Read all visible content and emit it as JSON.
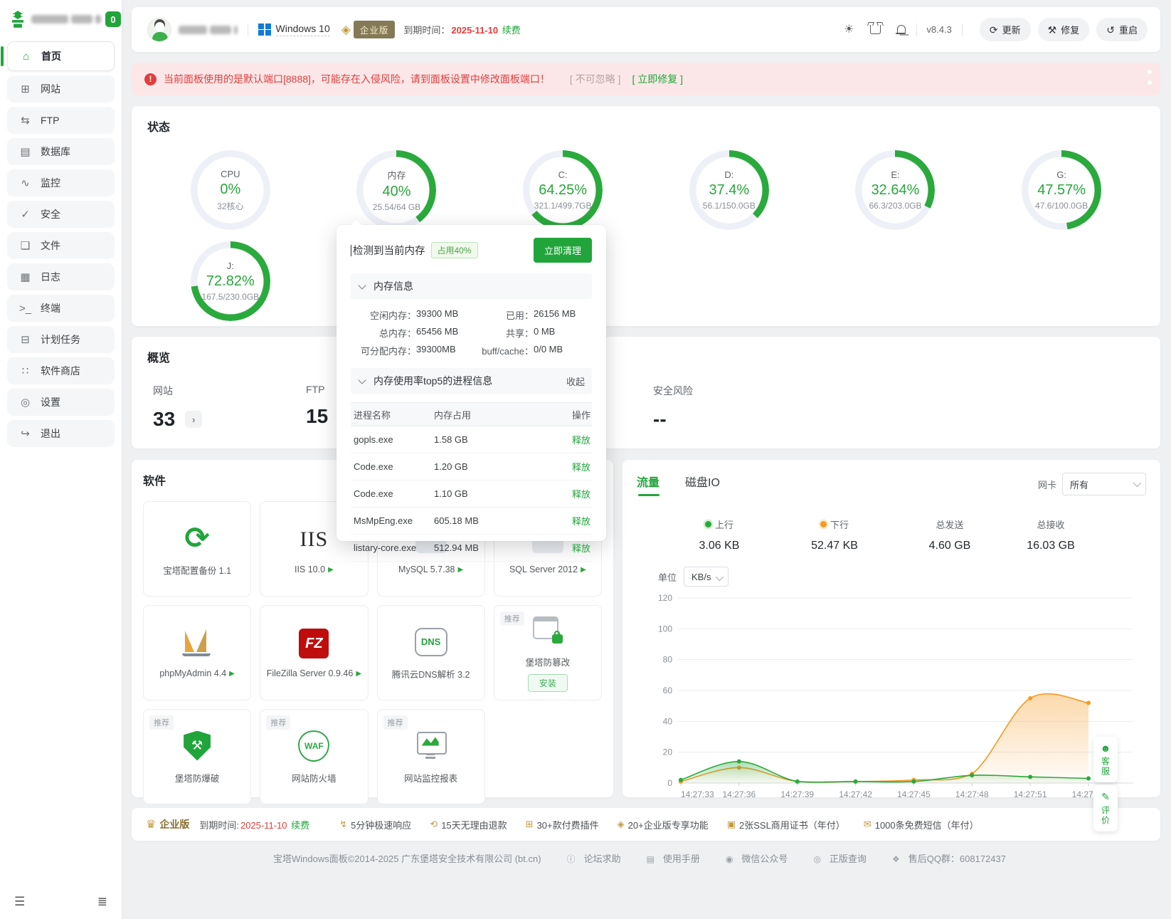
{
  "sidebar": {
    "badge": "0",
    "items": [
      {
        "label": "首页",
        "icon": "home",
        "glyph": "⌂",
        "active": true
      },
      {
        "label": "网站",
        "icon": "website",
        "glyph": "⊞"
      },
      {
        "label": "FTP",
        "icon": "ftp",
        "glyph": "⇆"
      },
      {
        "label": "数据库",
        "icon": "database",
        "glyph": "▤"
      },
      {
        "label": "监控",
        "icon": "monitor",
        "glyph": "∿"
      },
      {
        "label": "安全",
        "icon": "security",
        "glyph": "✓"
      },
      {
        "label": "文件",
        "icon": "files",
        "glyph": "❏"
      },
      {
        "label": "日志",
        "icon": "logs",
        "glyph": "▦"
      },
      {
        "label": "终端",
        "icon": "terminal",
        "glyph": ">_"
      },
      {
        "label": "计划任务",
        "icon": "cron",
        "glyph": "⊟"
      },
      {
        "label": "软件商店",
        "icon": "appstore",
        "glyph": "∷"
      },
      {
        "label": "设置",
        "icon": "settings",
        "glyph": "◎"
      },
      {
        "label": "退出",
        "icon": "logout",
        "glyph": "↪"
      }
    ]
  },
  "topbar": {
    "os": "Windows 10",
    "edition": "企业版",
    "expire_label": "到期时间：",
    "expire_date": "2025-11-10",
    "renew": "续费",
    "version": "v8.4.3",
    "update": "更新",
    "repair": "修复",
    "restart": "重启"
  },
  "alert": {
    "text": "当前面板使用的是默认端口[8888]，可能存在入侵风险，请到面板设置中修改面板端口！",
    "ignore": "[ 不可忽略 ]",
    "fix": "[ 立即修复 ]"
  },
  "status": {
    "title": "状态",
    "gauges": [
      {
        "label": "CPU",
        "value": "0%",
        "sub": "32核心",
        "percent": 0
      },
      {
        "label": "内存",
        "value": "40%",
        "sub": "25.54/64 GB",
        "percent": 40
      },
      {
        "label": "C:",
        "value": "64.25%",
        "sub": "321.1/499.7GB",
        "percent": 64.25
      },
      {
        "label": "D:",
        "value": "37.4%",
        "sub": "56.1/150.0GB",
        "percent": 37.4
      },
      {
        "label": "E:",
        "value": "32.64%",
        "sub": "66.3/203.0GB",
        "percent": 32.64
      },
      {
        "label": "G:",
        "value": "47.57%",
        "sub": "47.6/100.0GB",
        "percent": 47.57
      },
      {
        "label": "J:",
        "value": "72.82%",
        "sub": "167.5/230.0GB",
        "percent": 72.82
      }
    ]
  },
  "memory_popup": {
    "title": "检测到当前内存",
    "usage_badge": "占用40%",
    "clean_button": "立即清理",
    "info_title": "内存信息",
    "info": [
      {
        "label": "空闲内存：",
        "value": "39300 MB",
        "side": "l"
      },
      {
        "label": "已用：",
        "value": "26156 MB",
        "side": "r"
      },
      {
        "label": "总内存：",
        "value": "65456 MB",
        "side": "l"
      },
      {
        "label": "共享：",
        "value": "0 MB",
        "side": "r"
      },
      {
        "label": "可分配内存：",
        "value": "39300MB",
        "side": "l"
      },
      {
        "label": "buff/cache：",
        "value": "0/0 MB",
        "side": "r"
      }
    ],
    "top5_title": "内存使用率top5的进程信息",
    "collapse": "收起",
    "table_headers": {
      "name": "进程名称",
      "mem": "内存占用",
      "action": "操作"
    },
    "rows": [
      {
        "name": "gopls.exe",
        "mem": "1.58 GB",
        "action": "释放"
      },
      {
        "name": "Code.exe",
        "mem": "1.20 GB",
        "action": "释放"
      },
      {
        "name": "Code.exe",
        "mem": "1.10 GB",
        "action": "释放"
      },
      {
        "name": "MsMpEng.exe",
        "mem": "605.18 MB",
        "action": "释放"
      },
      {
        "name": "listary-core.exe",
        "mem": "512.94 MB",
        "action": "释放"
      }
    ]
  },
  "overview": {
    "title": "概览",
    "stats": [
      {
        "label": "网站",
        "value": "33",
        "link": true
      },
      {
        "label": "FTP",
        "value": "15"
      },
      {
        "label": "安全风险",
        "value": "--",
        "last": true
      }
    ]
  },
  "software": {
    "title": "软件",
    "apps": [
      {
        "name": "宝塔配置备份 1.1",
        "icon": "backup"
      },
      {
        "name": "IIS 10.0",
        "icon": "iis",
        "running": true
      },
      {
        "name": "MySQL 5.7.38",
        "icon": "mysql",
        "running": true
      },
      {
        "name": "SQL Server 2012",
        "icon": "sqlserver",
        "running": true
      },
      {
        "name": "phpMyAdmin 4.4",
        "icon": "phpmyadmin",
        "running": true
      },
      {
        "name": "FileZilla Server 0.9.46",
        "icon": "filezilla",
        "running": true
      },
      {
        "name": "腾讯云DNS解析 3.2",
        "icon": "dns"
      },
      {
        "name": "堡塔防篡改",
        "icon": "tamper",
        "recommend": "推荐",
        "install": "安装"
      },
      {
        "name": "堡塔防爆破",
        "icon": "shield",
        "recommend": "推荐"
      },
      {
        "name": "网站防火墙",
        "icon": "waf",
        "recommend": "推荐"
      },
      {
        "name": "网站监控报表",
        "icon": "report",
        "recommend": "推荐"
      }
    ]
  },
  "traffic": {
    "tab_traffic": "流量",
    "tab_diskio": "磁盘IO",
    "nic_label": "网卡",
    "nic_value": "所有",
    "stats": [
      {
        "label": "上行",
        "value": "3.06 KB",
        "dot": "green"
      },
      {
        "label": "下行",
        "value": "52.47 KB",
        "dot": "orange"
      },
      {
        "label": "总发送",
        "value": "4.60 GB"
      },
      {
        "label": "总接收",
        "value": "16.03 GB"
      }
    ],
    "unit_label": "单位",
    "unit_value": "KB/s"
  },
  "chart_data": {
    "type": "area",
    "x": [
      "14:27:33",
      "14:27:36",
      "14:27:39",
      "14:27:42",
      "14:27:45",
      "14:27:48",
      "14:27:51",
      "14:27:54"
    ],
    "series": [
      {
        "name": "下行",
        "color": "#f59a23",
        "values": [
          1,
          10,
          1,
          1,
          2,
          6,
          55,
          52
        ]
      },
      {
        "name": "上行",
        "color": "#2aa93c",
        "values": [
          2,
          14,
          1,
          1,
          1,
          5,
          4,
          3
        ]
      }
    ],
    "ylabel_unit": "KB/s",
    "ylim": [
      0,
      120
    ],
    "yticks": [
      0,
      20,
      40,
      60,
      80,
      100,
      120
    ],
    "grid": true,
    "legend_position": "none"
  },
  "bottombar": {
    "edition": "企业版",
    "expire_label": "到期时间:",
    "expire_date": "2025-11-10",
    "renew": "续费",
    "features": [
      {
        "text": "5分钟极速响应",
        "glyph": "↯"
      },
      {
        "text": "15天无理由退款",
        "glyph": "⟲"
      },
      {
        "text": "30+款付费插件",
        "glyph": "⊞"
      },
      {
        "text": "20+企业版专享功能",
        "glyph": "◈"
      },
      {
        "text": "2张SSL商用证书（年付）",
        "glyph": "▣"
      },
      {
        "text": "1000条免费短信（年付）",
        "glyph": "✉"
      }
    ]
  },
  "footer": {
    "copyright": "宝塔Windows面板©2014-2025 广东堡塔安全技术有限公司 (bt.cn)",
    "links": [
      {
        "text": "论坛求助",
        "glyph": "ⓘ"
      },
      {
        "text": "使用手册",
        "glyph": "▤"
      },
      {
        "text": "微信公众号",
        "glyph": "◉"
      },
      {
        "text": "正版查询",
        "glyph": "◎"
      },
      {
        "text": "售后QQ群：608172437",
        "glyph": "❖"
      }
    ]
  },
  "floaters": {
    "service": "客服",
    "rate": "评价"
  }
}
